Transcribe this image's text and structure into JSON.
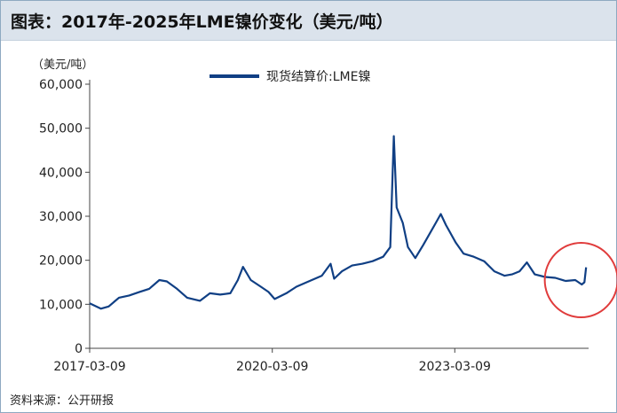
{
  "header": {
    "title": "图表：2017年-2025年LME镍价变化（美元/吨）"
  },
  "unit_label": "（美元/吨）",
  "source": "资料来源：公开研报",
  "colors": {
    "series": "#103f84",
    "highlight": "#e03c3c",
    "axis": "#444444"
  },
  "chart_data": {
    "type": "line",
    "title": "图表：2017年-2025年LME镍价变化（美元/吨）",
    "xlabel": "",
    "ylabel": "（美元/吨）",
    "ylim": [
      0,
      60000
    ],
    "yticks": [
      0,
      10000,
      20000,
      30000,
      40000,
      50000,
      60000
    ],
    "ytick_labels": [
      "0",
      "10,000",
      "20,000",
      "30,000",
      "40,000",
      "50,000",
      "60,000"
    ],
    "xtick_labels": [
      "2017-03-09",
      "2020-03-09",
      "2023-03-09"
    ],
    "grid": false,
    "legend": "top-center",
    "series": [
      {
        "name": "现货结算价:LME镍",
        "x": [
          "2017-03-09",
          "2017-05-15",
          "2017-07-01",
          "2017-09-01",
          "2017-11-01",
          "2018-01-02",
          "2018-03-01",
          "2018-05-01",
          "2018-06-15",
          "2018-08-15",
          "2018-10-15",
          "2018-12-31",
          "2019-03-01",
          "2019-05-01",
          "2019-07-01",
          "2019-08-15",
          "2019-09-15",
          "2019-11-01",
          "2019-12-31",
          "2020-02-15",
          "2020-03-23",
          "2020-06-01",
          "2020-08-01",
          "2020-10-01",
          "2020-12-31",
          "2021-02-22",
          "2021-03-15",
          "2021-05-01",
          "2021-07-01",
          "2021-09-01",
          "2021-11-01",
          "2022-01-03",
          "2022-02-15",
          "2022-03-08",
          "2022-03-25",
          "2022-05-01",
          "2022-06-01",
          "2022-07-15",
          "2022-09-01",
          "2022-11-15",
          "2022-12-15",
          "2023-01-15",
          "2023-03-15",
          "2023-05-01",
          "2023-07-01",
          "2023-09-01",
          "2023-11-01",
          "2024-01-02",
          "2024-02-15",
          "2024-04-01",
          "2024-05-15",
          "2024-07-01",
          "2024-09-01",
          "2024-11-01",
          "2025-01-02",
          "2025-03-01",
          "2025-04-09",
          "2025-04-25",
          "2025-05-05"
        ],
        "values": [
          10200,
          9000,
          9500,
          11500,
          12000,
          12800,
          13500,
          15500,
          15200,
          13500,
          11500,
          10800,
          12500,
          12200,
          12500,
          15500,
          18500,
          15500,
          14000,
          12800,
          11200,
          12500,
          14000,
          15000,
          16500,
          19200,
          15800,
          17500,
          18800,
          19200,
          19800,
          20800,
          23000,
          48200,
          32000,
          28500,
          23000,
          20500,
          23500,
          28500,
          30500,
          28000,
          24000,
          21500,
          20800,
          19800,
          17500,
          16500,
          16800,
          17500,
          19500,
          16800,
          16200,
          16000,
          15300,
          15500,
          14500,
          15000,
          18400
        ]
      }
    ],
    "annotations": [
      {
        "type": "circle",
        "label": "",
        "x_range": [
          "2025-01-02",
          "2025-05-05"
        ]
      }
    ]
  }
}
